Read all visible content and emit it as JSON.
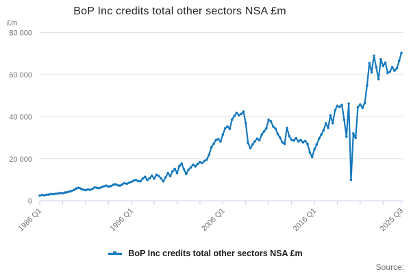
{
  "title": "BoP Inc credits total other sectors NSA £m",
  "y_unit": "£m",
  "legend": {
    "label": "BoP Inc credits total other sectors NSA £m"
  },
  "source_label": "Source:",
  "colors": {
    "line": "#1478be",
    "grid": "#e2e2e2",
    "axis": "#c9d2e8",
    "tick_text": "#6f6f6f",
    "title_text": "#262626"
  },
  "chart_data": {
    "type": "line",
    "title": "BoP Inc credits total other sectors NSA £m",
    "xlabel": "",
    "ylabel": "£m",
    "x_start": "1986 Q1",
    "x_end": "2025 Q3",
    "x_interval": "quarterly",
    "grid": "horizontal",
    "legend_position": "bottom",
    "ylim": [
      0,
      80000
    ],
    "y_ticks": [
      {
        "v": 0,
        "label": "0"
      },
      {
        "v": 20000,
        "label": "20 000"
      },
      {
        "v": 40000,
        "label": "40 000"
      },
      {
        "v": 60000,
        "label": "60 000"
      },
      {
        "v": 80000,
        "label": "80 000"
      }
    ],
    "x_minor_tick_step": 10,
    "x_ticks_labeled": [
      {
        "q": 0,
        "label": "1986 Q1"
      },
      {
        "q": 40,
        "label": "1996 Q1"
      },
      {
        "q": 80,
        "label": "2006 Q1"
      },
      {
        "q": 120,
        "label": "2016 Q1"
      },
      {
        "q": 158,
        "label": "2025 Q3"
      }
    ],
    "series": [
      {
        "name": "BoP Inc credits total other sectors NSA £m",
        "values": [
          2500,
          2750,
          2650,
          2900,
          3000,
          3250,
          3150,
          3400,
          3500,
          3750,
          3650,
          3950,
          4100,
          4450,
          4700,
          5200,
          5900,
          6200,
          5800,
          5300,
          5100,
          5400,
          5250,
          5600,
          6400,
          6200,
          6050,
          6500,
          6900,
          7200,
          6800,
          7000,
          7600,
          7900,
          7400,
          7200,
          7800,
          8400,
          8100,
          8600,
          9000,
          9600,
          9900,
          9400,
          9300,
          10600,
          11400,
          9900,
          10800,
          12000,
          10600,
          12400,
          11800,
          10700,
          9300,
          11200,
          13200,
          11800,
          14000,
          15200,
          13200,
          16500,
          17700,
          15000,
          12800,
          14800,
          15900,
          17200,
          16400,
          17500,
          18400,
          18000,
          19000,
          19600,
          22000,
          25500,
          27100,
          28900,
          29300,
          28200,
          31500,
          34500,
          35300,
          34200,
          38600,
          40300,
          41800,
          40700,
          41300,
          42400,
          37000,
          27500,
          25000,
          26800,
          28300,
          29600,
          28800,
          31500,
          33000,
          34500,
          38500,
          37800,
          35300,
          34300,
          31800,
          30000,
          27800,
          27000,
          34700,
          30800,
          29000,
          28700,
          29800,
          28200,
          28900,
          27800,
          28500,
          27000,
          23000,
          20800,
          24500,
          26800,
          29500,
          31500,
          33500,
          36900,
          34700,
          40700,
          36900,
          43000,
          45200,
          44600,
          45600,
          38500,
          30500,
          46200,
          10000,
          32000,
          29900,
          44500,
          45800,
          44200,
          46500,
          54800,
          65500,
          61000,
          69000,
          63500,
          57800,
          67300,
          64100,
          65700,
          60800,
          61400,
          63600,
          61900,
          63000,
          66500,
          70300
        ]
      }
    ]
  }
}
